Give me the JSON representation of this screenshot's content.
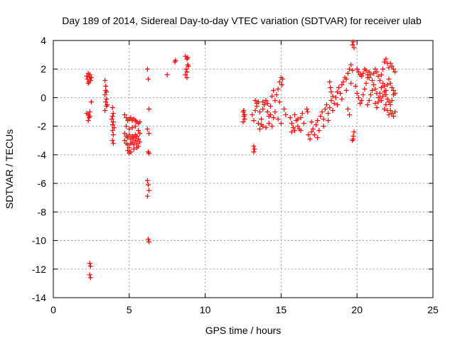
{
  "chart_data": {
    "type": "scatter",
    "title": "Day 189 of 2014, Sidereal Day-to-day VTEC variation (SDTVAR) for receiver ulab",
    "xlabel": "GPS time / hours",
    "ylabel": "SDTVAR / TECUs",
    "xlim": [
      0,
      25
    ],
    "ylim": [
      -14,
      4
    ],
    "xticks": [
      0,
      5,
      10,
      15,
      20,
      25
    ],
    "xtick_labels": [
      "0",
      "5",
      "10",
      "15",
      "20",
      "25"
    ],
    "yticks": [
      4,
      2,
      0,
      -2,
      -4,
      -6,
      -8,
      -10,
      -12,
      -14
    ],
    "ytick_labels": [
      "4",
      "2",
      "0",
      "-2",
      "-4",
      "-6",
      "-8",
      "-10",
      "-12",
      "-14"
    ],
    "grid": true,
    "marker": "+",
    "color": "#ff0000",
    "series": [
      {
        "name": "SDTVAR",
        "points": [
          [
            2.2,
            1.5
          ],
          [
            2.25,
            1.3
          ],
          [
            2.3,
            1.7
          ],
          [
            2.35,
            1.1
          ],
          [
            2.4,
            1.6
          ],
          [
            2.45,
            1.2
          ],
          [
            2.5,
            1.4
          ],
          [
            2.3,
            1.0
          ],
          [
            2.4,
            1.45
          ],
          [
            2.2,
            -1.1
          ],
          [
            2.3,
            -1.2
          ],
          [
            2.4,
            -1.0
          ],
          [
            2.35,
            -1.4
          ],
          [
            2.3,
            -1.6
          ],
          [
            2.4,
            -1.3
          ],
          [
            2.5,
            -0.3
          ],
          [
            2.4,
            -11.6
          ],
          [
            2.45,
            -11.8
          ],
          [
            2.4,
            -12.4
          ],
          [
            2.45,
            -12.6
          ],
          [
            3.4,
            1.2
          ],
          [
            3.45,
            0.8
          ],
          [
            3.5,
            0.4
          ],
          [
            3.4,
            0.2
          ],
          [
            3.5,
            -0.1
          ],
          [
            3.45,
            -0.3
          ],
          [
            3.5,
            -0.6
          ],
          [
            3.4,
            -0.9
          ],
          [
            3.55,
            -0.5
          ],
          [
            3.45,
            0.5
          ],
          [
            3.9,
            -0.7
          ],
          [
            3.95,
            -1.1
          ],
          [
            3.9,
            -1.3
          ],
          [
            3.95,
            -1.7
          ],
          [
            3.9,
            -1.9
          ],
          [
            4.0,
            -2.1
          ],
          [
            3.9,
            -2.3
          ],
          [
            3.95,
            -2.6
          ],
          [
            3.9,
            -3.0
          ],
          [
            3.95,
            -3.2
          ],
          [
            3.85,
            -1.5
          ],
          [
            4.7,
            -1.2
          ],
          [
            4.8,
            -1.4
          ],
          [
            4.9,
            -1.6
          ],
          [
            5.0,
            -1.5
          ],
          [
            5.1,
            -1.4
          ],
          [
            5.2,
            -1.6
          ],
          [
            5.3,
            -1.5
          ],
          [
            5.4,
            -1.6
          ],
          [
            5.5,
            -1.7
          ],
          [
            5.6,
            -1.8
          ],
          [
            5.7,
            -1.7
          ],
          [
            4.7,
            -2.5
          ],
          [
            4.8,
            -2.7
          ],
          [
            4.9,
            -2.8
          ],
          [
            5.0,
            -2.6
          ],
          [
            5.1,
            -2.9
          ],
          [
            5.2,
            -2.7
          ],
          [
            5.3,
            -2.8
          ],
          [
            5.4,
            -2.6
          ],
          [
            5.5,
            -2.7
          ],
          [
            5.6,
            -2.9
          ],
          [
            5.7,
            -2.5
          ],
          [
            4.7,
            -3.0
          ],
          [
            4.8,
            -3.2
          ],
          [
            4.9,
            -3.3
          ],
          [
            5.0,
            -3.5
          ],
          [
            5.1,
            -3.2
          ],
          [
            5.2,
            -3.1
          ],
          [
            5.3,
            -3.3
          ],
          [
            5.4,
            -3.0
          ],
          [
            5.5,
            -3.2
          ],
          [
            5.6,
            -3.4
          ],
          [
            5.7,
            -3.1
          ],
          [
            4.9,
            -3.7
          ],
          [
            5.0,
            -3.9
          ],
          [
            5.1,
            -3.8
          ],
          [
            4.8,
            -2.0
          ],
          [
            5.0,
            -2.2
          ],
          [
            5.2,
            -2.1
          ],
          [
            5.4,
            -2.0
          ],
          [
            5.6,
            -2.3
          ],
          [
            5.3,
            -3.6
          ],
          [
            5.5,
            -3.5
          ],
          [
            6.2,
            2.0
          ],
          [
            6.25,
            1.3
          ],
          [
            6.3,
            -0.8
          ],
          [
            6.2,
            -2.2
          ],
          [
            6.3,
            -2.5
          ],
          [
            6.25,
            -3.8
          ],
          [
            6.3,
            -3.9
          ],
          [
            6.2,
            -5.8
          ],
          [
            6.25,
            -6.1
          ],
          [
            6.3,
            -6.5
          ],
          [
            6.2,
            -6.9
          ],
          [
            6.25,
            -9.9
          ],
          [
            6.3,
            -10.1
          ],
          [
            7.5,
            1.6
          ],
          [
            8.0,
            2.5
          ],
          [
            8.05,
            2.6
          ],
          [
            8.7,
            2.9
          ],
          [
            8.8,
            2.7
          ],
          [
            8.85,
            2.3
          ],
          [
            8.75,
            2.0
          ],
          [
            8.8,
            1.8
          ],
          [
            8.7,
            1.6
          ],
          [
            8.8,
            1.4
          ],
          [
            8.9,
            2.2
          ],
          [
            8.85,
            2.8
          ],
          [
            12.5,
            -1.0
          ],
          [
            12.55,
            -1.3
          ],
          [
            12.6,
            -1.5
          ],
          [
            12.5,
            -1.7
          ],
          [
            12.6,
            -1.2
          ],
          [
            12.55,
            -0.9
          ],
          [
            13.2,
            -3.4
          ],
          [
            13.25,
            -3.6
          ],
          [
            13.2,
            -3.8
          ],
          [
            13.1,
            -1.2
          ],
          [
            13.2,
            -1.6
          ],
          [
            13.3,
            -0.9
          ],
          [
            13.4,
            -0.4
          ],
          [
            13.5,
            -0.3
          ],
          [
            13.6,
            -1.0
          ],
          [
            13.7,
            -1.5
          ],
          [
            13.8,
            -0.8
          ],
          [
            13.9,
            -0.5
          ],
          [
            14.0,
            -0.2
          ],
          [
            14.1,
            -1.0
          ],
          [
            14.2,
            -1.3
          ],
          [
            14.3,
            -0.6
          ],
          [
            14.4,
            0.1
          ],
          [
            14.5,
            0.5
          ],
          [
            14.6,
            -0.2
          ],
          [
            14.7,
            0.2
          ],
          [
            14.8,
            0.6
          ],
          [
            14.9,
            1.1
          ],
          [
            15.0,
            1.4
          ],
          [
            15.1,
            1.3
          ],
          [
            15.05,
            0.9
          ],
          [
            13.5,
            -1.8
          ],
          [
            13.6,
            -2.2
          ],
          [
            13.7,
            -1.9
          ],
          [
            13.8,
            -2.0
          ],
          [
            14.0,
            -2.1
          ],
          [
            14.2,
            -1.8
          ],
          [
            14.4,
            -2.0
          ],
          [
            14.5,
            -1.4
          ],
          [
            14.6,
            -1.0
          ],
          [
            14.8,
            -1.5
          ],
          [
            15.0,
            -1.8
          ],
          [
            13.3,
            -0.2
          ],
          [
            13.4,
            -0.6
          ],
          [
            13.8,
            -0.3
          ],
          [
            14.1,
            -0.4
          ],
          [
            14.3,
            -1.2
          ],
          [
            14.9,
            -0.3
          ],
          [
            15.2,
            -0.8
          ],
          [
            15.3,
            -1.2
          ],
          [
            15.6,
            -1.4
          ],
          [
            15.7,
            -1.8
          ],
          [
            15.8,
            -2.1
          ],
          [
            15.9,
            -2.3
          ],
          [
            16.0,
            -1.6
          ],
          [
            16.1,
            -2.0
          ],
          [
            16.2,
            -2.2
          ],
          [
            16.3,
            -1.4
          ],
          [
            16.4,
            -1.1
          ],
          [
            16.5,
            -1.8
          ],
          [
            15.7,
            -2.4
          ],
          [
            15.9,
            -1.2
          ],
          [
            16.1,
            -1.5
          ],
          [
            16.3,
            -2.3
          ],
          [
            16.7,
            -0.8
          ],
          [
            16.75,
            -1.0
          ],
          [
            16.8,
            -2.6
          ],
          [
            16.9,
            -2.9
          ],
          [
            17.0,
            -2.4
          ],
          [
            17.1,
            -2.2
          ],
          [
            17.2,
            -2.6
          ],
          [
            17.3,
            -1.9
          ],
          [
            17.4,
            -1.6
          ],
          [
            17.5,
            -2.3
          ],
          [
            17.6,
            -1.3
          ],
          [
            17.7,
            -1.0
          ],
          [
            17.8,
            -1.5
          ],
          [
            17.9,
            -0.8
          ],
          [
            18.0,
            -0.5
          ],
          [
            18.1,
            -1.1
          ],
          [
            18.2,
            -0.7
          ],
          [
            18.3,
            -0.2
          ],
          [
            18.4,
            0.1
          ],
          [
            18.5,
            -0.4
          ],
          [
            18.6,
            0.0
          ],
          [
            18.7,
            0.4
          ],
          [
            18.8,
            0.7
          ],
          [
            18.9,
            0.3
          ],
          [
            19.0,
            0.9
          ],
          [
            19.1,
            1.1
          ],
          [
            19.2,
            1.4
          ],
          [
            19.3,
            1.3
          ],
          [
            19.4,
            1.7
          ],
          [
            19.5,
            2.0
          ],
          [
            19.6,
            2.3
          ],
          [
            19.7,
            1.9
          ],
          [
            17.0,
            -1.7
          ],
          [
            17.4,
            -2.8
          ],
          [
            17.8,
            -2.0
          ],
          [
            18.1,
            -1.6
          ],
          [
            18.4,
            -0.9
          ],
          [
            18.7,
            -0.5
          ],
          [
            19.0,
            -0.1
          ],
          [
            19.3,
            0.5
          ],
          [
            19.6,
            1.0
          ],
          [
            19.4,
            -0.8
          ],
          [
            19.5,
            -1.2
          ],
          [
            18.2,
            1.1
          ],
          [
            18.25,
            0.7
          ],
          [
            18.3,
            0.4
          ],
          [
            19.7,
            -3.0
          ],
          [
            19.75,
            -2.7
          ],
          [
            19.8,
            -2.4
          ],
          [
            19.75,
            -2.9
          ],
          [
            19.7,
            3.7
          ],
          [
            19.75,
            3.9
          ],
          [
            19.8,
            3.5
          ],
          [
            19.9,
            0.8
          ],
          [
            20.0,
            0.3
          ],
          [
            20.1,
            0.0
          ],
          [
            20.2,
            -0.4
          ],
          [
            20.3,
            -0.2
          ],
          [
            20.4,
            0.2
          ],
          [
            20.5,
            0.6
          ],
          [
            20.6,
            1.0
          ],
          [
            20.7,
            1.4
          ],
          [
            20.8,
            1.8
          ],
          [
            20.9,
            1.6
          ],
          [
            21.0,
            1.2
          ],
          [
            20.0,
            2.0
          ],
          [
            20.1,
            1.8
          ],
          [
            20.2,
            1.6
          ],
          [
            20.3,
            1.5
          ],
          [
            20.4,
            1.7
          ],
          [
            20.5,
            2.0
          ],
          [
            20.6,
            1.9
          ],
          [
            20.7,
            1.6
          ],
          [
            20.8,
            1.4
          ],
          [
            21.1,
            1.7
          ],
          [
            21.2,
            2.0
          ],
          [
            21.3,
            1.8
          ],
          [
            21.4,
            1.5
          ],
          [
            21.5,
            1.2
          ],
          [
            21.6,
            1.6
          ],
          [
            21.7,
            2.0
          ],
          [
            21.8,
            2.5
          ],
          [
            21.9,
            2.7
          ],
          [
            22.0,
            2.4
          ],
          [
            22.1,
            2.1
          ],
          [
            22.2,
            2.4
          ],
          [
            22.3,
            2.2
          ],
          [
            22.4,
            2.0
          ],
          [
            22.5,
            1.8
          ],
          [
            20.7,
            -0.5
          ],
          [
            20.8,
            -0.2
          ],
          [
            20.9,
            0.2
          ],
          [
            21.0,
            0.5
          ],
          [
            21.1,
            0.9
          ],
          [
            21.2,
            0.6
          ],
          [
            21.3,
            0.3
          ],
          [
            21.4,
            0.0
          ],
          [
            21.5,
            0.3
          ],
          [
            21.6,
            0.7
          ],
          [
            21.7,
            1.0
          ],
          [
            21.8,
            0.8
          ],
          [
            21.9,
            0.5
          ],
          [
            22.0,
            0.9
          ],
          [
            22.1,
            1.3
          ],
          [
            22.2,
            1.0
          ],
          [
            22.3,
            0.7
          ],
          [
            22.4,
            0.5
          ],
          [
            21.2,
            -0.4
          ],
          [
            21.3,
            -0.7
          ],
          [
            21.4,
            -0.3
          ],
          [
            21.5,
            0.0
          ],
          [
            21.6,
            -0.2
          ],
          [
            21.7,
            0.1
          ],
          [
            21.8,
            0.4
          ],
          [
            21.9,
            0.2
          ],
          [
            22.0,
            -0.1
          ],
          [
            22.1,
            -0.3
          ],
          [
            22.2,
            -0.5
          ],
          [
            22.3,
            -0.2
          ],
          [
            22.4,
            0.2
          ],
          [
            22.5,
            0.3
          ],
          [
            21.8,
            -0.8
          ],
          [
            21.9,
            -0.5
          ],
          [
            22.0,
            -0.9
          ],
          [
            22.1,
            -1.2
          ],
          [
            22.2,
            -0.9
          ],
          [
            22.3,
            -1.1
          ],
          [
            22.4,
            -1.3
          ],
          [
            22.5,
            -1.0
          ]
        ]
      }
    ]
  }
}
